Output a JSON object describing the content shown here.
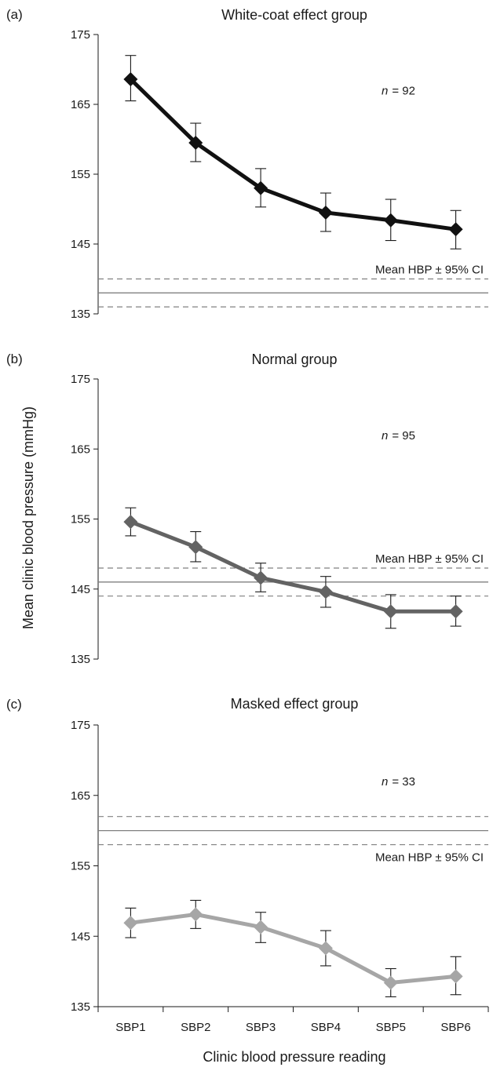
{
  "chart_data": [
    {
      "type": "line",
      "panel_tag": "(a)",
      "title": "White-coat effect group",
      "n_prefix": "n",
      "n_value": "= 92",
      "categories": [
        "SBP1",
        "SBP2",
        "SBP3",
        "SBP4",
        "SBP5",
        "SBP6"
      ],
      "series": [
        {
          "values": [
            168.6,
            159.5,
            153.0,
            149.5,
            148.4,
            147.1
          ],
          "ci_upper": [
            172.0,
            162.3,
            155.8,
            152.3,
            151.4,
            149.8
          ],
          "ci_lower": [
            165.5,
            156.8,
            150.3,
            146.8,
            145.5,
            144.3
          ],
          "color": "#111111"
        }
      ],
      "reference": {
        "label": "Mean HBP ± 95% CI",
        "mean": 138.0,
        "upper": 140.0,
        "lower": 136.0,
        "line_color": "#808080"
      },
      "ylim": [
        135,
        175
      ],
      "yticks": [
        135,
        145,
        155,
        165,
        175
      ],
      "xticks_shown": false
    },
    {
      "type": "line",
      "panel_tag": "(b)",
      "title": "Normal group",
      "n_prefix": "n",
      "n_value": "= 95",
      "categories": [
        "SBP1",
        "SBP2",
        "SBP3",
        "SBP4",
        "SBP5",
        "SBP6"
      ],
      "series": [
        {
          "values": [
            154.6,
            151.0,
            146.6,
            144.6,
            141.8,
            141.8
          ],
          "ci_upper": [
            156.6,
            153.2,
            148.7,
            146.8,
            144.2,
            144.0
          ],
          "ci_lower": [
            152.6,
            148.9,
            144.6,
            142.4,
            139.4,
            139.7
          ],
          "color": "#636363"
        }
      ],
      "reference": {
        "label": "Mean HBP ± 95% CI",
        "mean": 146.0,
        "upper": 148.0,
        "lower": 144.0,
        "line_color": "#808080"
      },
      "ylim": [
        135,
        175
      ],
      "yticks": [
        135,
        145,
        155,
        165,
        175
      ],
      "xticks_shown": false
    },
    {
      "type": "line",
      "panel_tag": "(c)",
      "title": "Masked effect group",
      "n_prefix": "n",
      "n_value": "= 33",
      "categories": [
        "SBP1",
        "SBP2",
        "SBP3",
        "SBP4",
        "SBP5",
        "SBP6"
      ],
      "series": [
        {
          "values": [
            146.9,
            148.1,
            146.3,
            143.3,
            138.4,
            139.3
          ],
          "ci_upper": [
            149.0,
            150.1,
            148.4,
            145.8,
            140.4,
            142.1
          ],
          "ci_lower": [
            144.8,
            146.1,
            144.1,
            140.8,
            136.4,
            136.7
          ],
          "color": "#a6a6a6"
        }
      ],
      "reference": {
        "label": "Mean HBP ± 95% CI",
        "mean": 160.0,
        "upper": 162.0,
        "lower": 158.0,
        "line_color": "#808080"
      },
      "ylim": [
        135,
        175
      ],
      "yticks": [
        135,
        145,
        155,
        165,
        175
      ],
      "xticks_shown": true
    }
  ],
  "axes": {
    "ylabel": "Mean clinic blood pressure (mmHg)",
    "xlabel": "Clinic blood pressure reading"
  }
}
